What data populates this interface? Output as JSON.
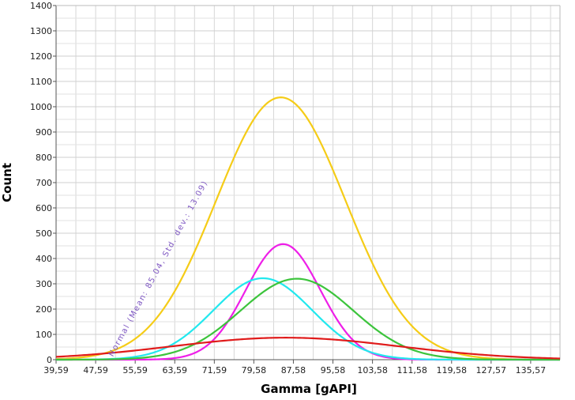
{
  "chart_data": {
    "type": "line",
    "xlabel": "Gamma [gAPI]",
    "ylabel": "Count",
    "xlim": [
      39.59,
      141.5
    ],
    "ylim": [
      0,
      1400
    ],
    "xticks": [
      39.59,
      47.59,
      55.59,
      63.59,
      71.59,
      79.58,
      87.58,
      95.58,
      103.58,
      111.58,
      119.58,
      127.57,
      135.57
    ],
    "xtick_labels": [
      "39,59",
      "47,59",
      "55,59",
      "63,59",
      "71,59",
      "79,58",
      "87,58",
      "95,58",
      "103,58",
      "111,58",
      "119,58",
      "127,57",
      "135,57"
    ],
    "yticks": [
      0,
      100,
      200,
      300,
      400,
      500,
      600,
      700,
      800,
      900,
      1000,
      1100,
      1200,
      1300,
      1400
    ],
    "ytick_labels": [
      "0",
      "100",
      "200",
      "300",
      "400",
      "500",
      "600",
      "700",
      "800",
      "900",
      "1000",
      "1100",
      "1200",
      "1300",
      "1400"
    ],
    "grid": true,
    "annotation": {
      "text": "Normal (Mean: 85.04, Std. dev.: 13.09)",
      "color": "#7e57c2"
    },
    "series": [
      {
        "color": "#f5cc17",
        "curve": "normal",
        "mean": 85.04,
        "std": 13.09,
        "peak": 1037
      },
      {
        "color": "#ee1fe8",
        "curve": "normal",
        "mean": 85.5,
        "std": 7.5,
        "peak": 457
      },
      {
        "color": "#22e8ee",
        "curve": "normal",
        "mean": 81.4,
        "std": 10.0,
        "peak": 322
      },
      {
        "color": "#3cc43c",
        "curve": "normal",
        "mean": 88.3,
        "std": 11.4,
        "peak": 320
      },
      {
        "color": "#e01b1b",
        "curve": "normal",
        "mean": 86.0,
        "std": 23.0,
        "peak": 87
      }
    ]
  }
}
